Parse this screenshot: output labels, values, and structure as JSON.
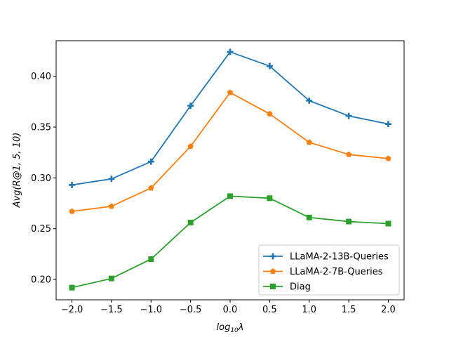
{
  "chart_data": {
    "type": "line",
    "title": "",
    "xlabel": "log",
    "xlabel_sub": "10",
    "xlabel_suffix": "λ",
    "ylabel": "Avg(R@1, 5, 10)",
    "x": [
      -2.0,
      -1.5,
      -1.0,
      -0.5,
      0.0,
      0.5,
      1.0,
      1.5,
      2.0
    ],
    "xticks": [
      -2.0,
      -1.5,
      -1.0,
      -0.5,
      0.0,
      0.5,
      1.0,
      1.5,
      2.0
    ],
    "xtick_labels": [
      "−2.0",
      "−1.5",
      "−1.0",
      "−0.5",
      "0.0",
      "0.5",
      "1.0",
      "1.5",
      "2.0"
    ],
    "xlim": [
      -2.2,
      2.2
    ],
    "ylim": [
      0.18,
      0.435
    ],
    "yticks": [
      0.2,
      0.25,
      0.3,
      0.35,
      0.4
    ],
    "ytick_labels": [
      "0.20",
      "0.25",
      "0.30",
      "0.35",
      "0.40"
    ],
    "grid": false,
    "legend_position": "lower-right",
    "series": [
      {
        "name": "LLaMA-2-13B-Queries",
        "color": "#1f77b4",
        "marker": "plus",
        "values": [
          0.293,
          0.299,
          0.316,
          0.371,
          0.424,
          0.41,
          0.376,
          0.361,
          0.353
        ]
      },
      {
        "name": "LLaMA-2-7B-Queries",
        "color": "#ff7f0e",
        "marker": "pentagon",
        "values": [
          0.267,
          0.272,
          0.29,
          0.331,
          0.384,
          0.363,
          0.335,
          0.323,
          0.319
        ]
      },
      {
        "name": "Diag",
        "color": "#2ca02c",
        "marker": "square",
        "values": [
          0.192,
          0.201,
          0.22,
          0.256,
          0.282,
          0.28,
          0.261,
          0.257,
          0.255
        ]
      }
    ]
  }
}
